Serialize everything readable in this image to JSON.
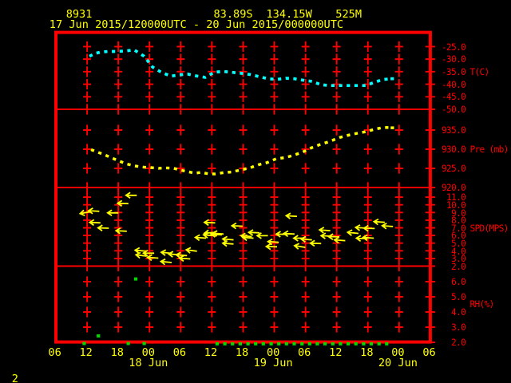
{
  "header": {
    "station_id": "8931",
    "latitude": "83.89S",
    "longitude": "134.15W",
    "elevation": "525M",
    "time_range": "17 Jun 2015/120000UTC - 20 Jun 2015/000000UTC"
  },
  "footer": {
    "page_number": "2"
  },
  "colors": {
    "background": "#000000",
    "grid": "#ff0000",
    "frame": "#ff0000",
    "axis_text": "#ff0000",
    "header_text": "#ffff00",
    "temperature": "#00ffff",
    "pressure": "#ffff00",
    "wind": "#ffff00",
    "humidity": "#00d800"
  },
  "chart_data": {
    "type": "line",
    "title": "AWS 8931 meteogram",
    "x_axis": {
      "unit": "UTC hour, hours counted from 17 Jun 2015 00:00",
      "range_hours": [
        6,
        78
      ],
      "tick_step_hours": 6,
      "tick_labels": [
        "06",
        "12",
        "18",
        "00",
        "06",
        "12",
        "18",
        "00",
        "06",
        "12",
        "18",
        "00",
        "06"
      ],
      "day_labels": [
        {
          "label": "18 Jun",
          "hour": 24
        },
        {
          "label": "19 Jun",
          "hour": 48
        },
        {
          "label": "20 Jun",
          "hour": 72
        }
      ]
    },
    "panels": [
      {
        "name": "temperature",
        "label": "T(C)",
        "unit": "C",
        "tick_values": [
          -25.0,
          -30.0,
          -35.0,
          -40.0,
          -45.0,
          -50.0
        ],
        "tick_labels": [
          "-25.0",
          "-30.0",
          "-35.0",
          "-40.0",
          "-45.0",
          "-50.0"
        ],
        "label_row": -35.0,
        "style": "dotted-line",
        "series": [
          [
            12.45,
            -28.85
          ],
          [
            13.52,
            -27.74
          ],
          [
            14.44,
            -27.26
          ],
          [
            15.98,
            -26.94
          ],
          [
            17.67,
            -26.94
          ],
          [
            19.51,
            -26.72
          ],
          [
            21.04,
            -26.3
          ],
          [
            22.96,
            -28.85
          ],
          [
            24.58,
            -33.14
          ],
          [
            26.26,
            -35.21
          ],
          [
            28.11,
            -36.8
          ],
          [
            29.72,
            -36.26
          ],
          [
            31.33,
            -35.94
          ],
          [
            33.02,
            -36.7
          ],
          [
            34.71,
            -37.28
          ],
          [
            36.47,
            -35.21
          ],
          [
            38.16,
            -34.89
          ],
          [
            39.93,
            -35.27
          ],
          [
            41.77,
            -35.69
          ],
          [
            43.46,
            -36.16
          ],
          [
            45.22,
            -37.02
          ],
          [
            46.76,
            -37.82
          ],
          [
            48.52,
            -38.07
          ],
          [
            50.21,
            -37.6
          ],
          [
            51.9,
            -37.82
          ],
          [
            53.51,
            -38.39
          ],
          [
            55.28,
            -38.87
          ],
          [
            56.97,
            -40.2
          ],
          [
            58.66,
            -40.52
          ],
          [
            60.35,
            -40.52
          ],
          [
            62.16,
            -40.52
          ],
          [
            63.83,
            -40.52
          ],
          [
            65.57,
            -40.52
          ],
          [
            67.09,
            -39.38
          ],
          [
            68.84,
            -38.14
          ],
          [
            70.68,
            -37.79
          ]
        ]
      },
      {
        "name": "pressure",
        "label": "Pre (mb)",
        "unit": "mb",
        "tick_values": [
          935.0,
          930.0,
          925.0,
          920.0
        ],
        "tick_labels": [
          "935.0",
          "930.0",
          "925.0",
          "920.0"
        ],
        "label_row": 930.0,
        "style": "dotted-line",
        "series": [
          [
            12.76,
            929.9
          ],
          [
            14.2,
            929.15
          ],
          [
            15.98,
            928.19
          ],
          [
            17.85,
            927.08
          ],
          [
            19.51,
            926.19
          ],
          [
            21.2,
            925.63
          ],
          [
            22.92,
            925.31
          ],
          [
            24.19,
            925.21
          ],
          [
            25.8,
            925.02
          ],
          [
            27.09,
            925.13
          ],
          [
            28.66,
            925.02
          ],
          [
            29.95,
            924.54
          ],
          [
            31.33,
            924.15
          ],
          [
            32.71,
            923.73
          ],
          [
            33.93,
            923.96
          ],
          [
            35.43,
            923.54
          ],
          [
            36.7,
            923.54
          ],
          [
            38.24,
            923.9
          ],
          [
            39.85,
            924.06
          ],
          [
            41.51,
            924.58
          ],
          [
            43.23,
            925.1
          ],
          [
            45.07,
            925.98
          ],
          [
            46.61,
            926.5
          ],
          [
            48.42,
            927.54
          ],
          [
            50.14,
            927.81
          ],
          [
            51.75,
            928.44
          ],
          [
            53.51,
            929.27
          ],
          [
            55.05,
            930.31
          ],
          [
            56.74,
            931.19
          ],
          [
            58.66,
            932.02
          ],
          [
            60.52,
            933.04
          ],
          [
            62.21,
            933.65
          ],
          [
            63.74,
            934.1
          ],
          [
            65.49,
            934.54
          ],
          [
            67.34,
            935.23
          ],
          [
            69.02,
            935.69
          ],
          [
            70.7,
            935.6
          ]
        ]
      },
      {
        "name": "wind_speed",
        "label": "SPD(MPS)",
        "unit": "MPS",
        "tick_values": [
          11.0,
          10.0,
          9.0,
          8.0,
          7.0,
          6.0,
          5.0,
          4.0,
          3.0,
          2.0
        ],
        "tick_labels": [
          "11.0",
          "10.0",
          "9.0",
          "8.0",
          "7.0",
          "6.0",
          "5.0",
          "4.0",
          "3.0",
          "2.0"
        ],
        "label_row": 7.0,
        "style": "wind-arrows",
        "arrows_note": "each arrow tail sits at [hour, speed]; tilt = vertical slant of the leftward-pointing arrow in px",
        "arrows": [
          [
            21.55,
            11.24,
            0
          ],
          [
            19.94,
            10.16,
            -0.4
          ],
          [
            14.35,
            9.16,
            -0.7
          ],
          [
            12.74,
            9.11,
            2.5
          ],
          [
            18.02,
            8.95,
            0
          ],
          [
            14.57,
            7.65,
            -0.6
          ],
          [
            16.18,
            6.95,
            -0.4
          ],
          [
            19.63,
            6.55,
            -0.7
          ],
          [
            23.3,
            3.95,
            -1.3
          ],
          [
            23.47,
            3.3,
            -1.7
          ],
          [
            24.9,
            3.69,
            0
          ],
          [
            25.7,
            3.04,
            -1
          ],
          [
            28.34,
            3.67,
            -1.3
          ],
          [
            28.26,
            2.47,
            -1.3
          ],
          [
            29.76,
            3.48,
            -1
          ],
          [
            31.21,
            3.36,
            -1.1
          ],
          [
            31.84,
            2.94,
            -1
          ],
          [
            33.13,
            3.95,
            -1.7
          ],
          [
            34.88,
            5.65,
            -1
          ],
          [
            36.64,
            7.65,
            -0.6
          ],
          [
            36.64,
            6.41,
            1.1
          ],
          [
            36.47,
            5.97,
            -1.1
          ],
          [
            37.92,
            6.08,
            -1
          ],
          [
            38.24,
            6.19,
            -1
          ],
          [
            40.16,
            5.43,
            -1.1
          ],
          [
            40.16,
            4.89,
            -1
          ],
          [
            41.92,
            7.21,
            -0.6
          ],
          [
            43.67,
            5.85,
            -1.1
          ],
          [
            44.0,
            5.65,
            -1
          ],
          [
            45.15,
            6.34,
            -0.6
          ],
          [
            46.78,
            5.97,
            0
          ],
          [
            50.46,
            6.13,
            -0.6
          ],
          [
            51.9,
            6.19,
            -0.6
          ],
          [
            48.86,
            5.1,
            -1
          ],
          [
            48.54,
            4.52,
            -0.4
          ],
          [
            52.35,
            8.49,
            -0.8
          ],
          [
            53.82,
            5.65,
            0
          ],
          [
            55.25,
            5.43,
            -1.1
          ],
          [
            57.01,
            4.95,
            -0.4
          ],
          [
            53.97,
            4.45,
            -2.1
          ],
          [
            58.78,
            6.63,
            -1
          ],
          [
            59.09,
            5.91,
            -0.6
          ],
          [
            60.53,
            5.81,
            -0.4
          ],
          [
            61.65,
            5.32,
            -1
          ],
          [
            64.18,
            6.27,
            -1.3
          ],
          [
            69.24,
            7.71,
            -1
          ],
          [
            70.83,
            7.17,
            -1
          ],
          [
            65.72,
            6.95,
            -1
          ],
          [
            67.32,
            6.91,
            -0.4
          ],
          [
            65.87,
            5.58,
            -0.6
          ],
          [
            67.15,
            5.65,
            -1
          ]
        ]
      },
      {
        "name": "relative_humidity",
        "label": "RH(%)",
        "unit": "%",
        "tick_values": [
          6.0,
          5.0,
          4.0,
          3.0,
          2.0
        ],
        "tick_labels": [
          "6.0",
          "5.0",
          "4.0",
          "3.0",
          "2.0"
        ],
        "label_row": 4.55,
        "style": "dots",
        "points": [
          [
            11.43,
            1.92
          ],
          [
            14.17,
            2.42
          ],
          [
            19.91,
            1.92
          ],
          [
            22.98,
            1.92
          ],
          [
            21.35,
            6.18
          ],
          [
            37.01,
            1.9
          ],
          [
            38.49,
            1.9
          ],
          [
            39.97,
            1.9
          ],
          [
            41.46,
            1.9
          ],
          [
            42.94,
            1.9
          ],
          [
            44.42,
            1.9
          ],
          [
            45.9,
            1.9
          ],
          [
            47.39,
            1.9
          ],
          [
            48.87,
            1.9
          ],
          [
            50.35,
            1.9
          ],
          [
            51.83,
            1.9
          ],
          [
            53.32,
            1.9
          ],
          [
            54.8,
            1.9
          ],
          [
            56.28,
            1.9
          ],
          [
            57.76,
            1.9
          ],
          [
            59.25,
            1.9
          ],
          [
            60.73,
            1.9
          ],
          [
            62.21,
            1.9
          ],
          [
            63.69,
            1.9
          ],
          [
            65.18,
            1.9
          ],
          [
            66.66,
            1.9
          ],
          [
            68.14,
            1.9
          ],
          [
            69.62,
            1.9
          ]
        ]
      }
    ]
  }
}
